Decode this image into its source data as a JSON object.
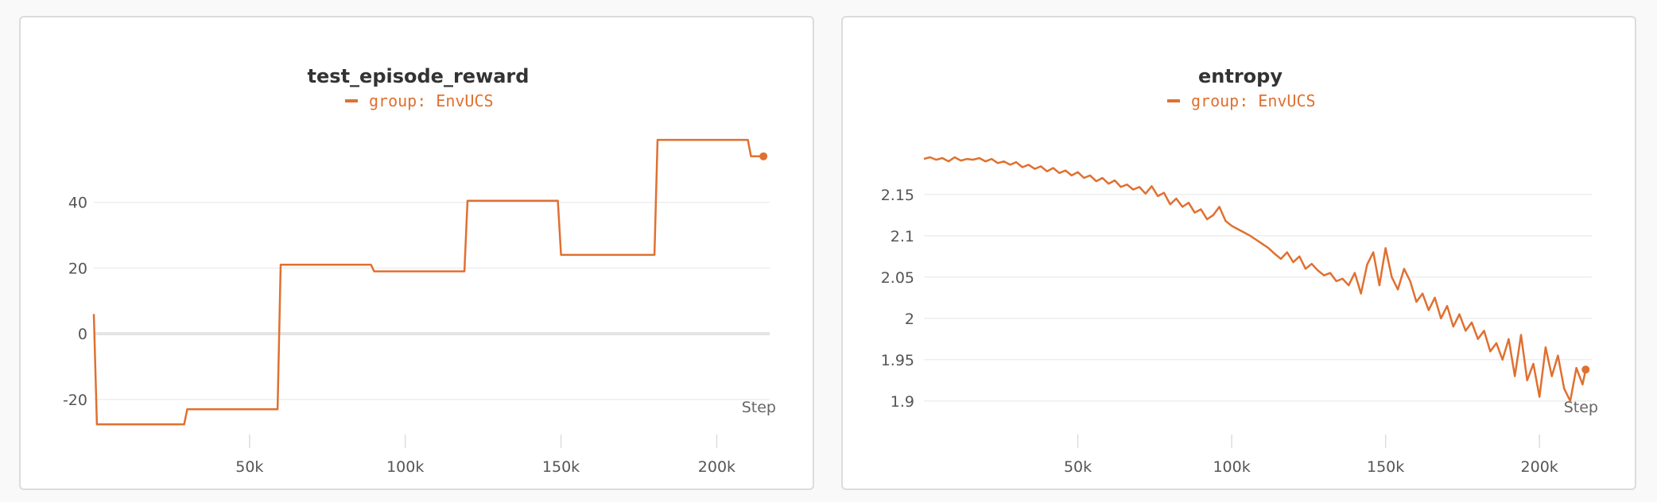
{
  "accent_color": "#e07030",
  "chart_data": [
    {
      "type": "line",
      "title": "test_episode_reward",
      "xlabel": "Step",
      "ylabel": "",
      "legend": "group: EnvUCS",
      "legend_position": "top-center",
      "grid": true,
      "xlim": [
        0,
        217000
      ],
      "ylim": [
        -28,
        60
      ],
      "x_ticks": [
        50000,
        100000,
        150000,
        200000
      ],
      "x_tick_labels": [
        "50k",
        "100k",
        "150k",
        "200k"
      ],
      "y_ticks": [
        -20,
        0,
        20,
        40
      ],
      "y_tick_labels": [
        "-20",
        "0",
        "20",
        "40"
      ],
      "series": [
        {
          "name": "group: EnvUCS",
          "color": "#e07030",
          "x": [
            0,
            1000,
            29000,
            30000,
            59000,
            60000,
            89000,
            90000,
            119000,
            120000,
            149000,
            150000,
            180000,
            181000,
            210000,
            211000,
            215000
          ],
          "y": [
            6,
            -27.6,
            -27.6,
            -23,
            -23,
            21,
            21,
            19,
            19,
            40.5,
            40.5,
            24,
            24,
            59,
            59,
            54,
            54
          ]
        }
      ]
    },
    {
      "type": "line",
      "title": "entropy",
      "xlabel": "Step",
      "ylabel": "",
      "legend": "group: EnvUCS",
      "legend_position": "top-center",
      "grid": true,
      "xlim": [
        0,
        217000
      ],
      "ylim": [
        1.87,
        2.22
      ],
      "x_ticks": [
        50000,
        100000,
        150000,
        200000
      ],
      "x_tick_labels": [
        "50k",
        "100k",
        "150k",
        "200k"
      ],
      "y_ticks": [
        1.9,
        1.95,
        2.0,
        2.05,
        2.1,
        2.15
      ],
      "y_tick_labels": [
        "1.9",
        "1.95",
        "2",
        "2.05",
        "2.1",
        "2.15"
      ],
      "series": [
        {
          "name": "group: EnvUCS",
          "color": "#e07030",
          "x": [
            0,
            2000,
            4000,
            6000,
            8000,
            10000,
            12000,
            14000,
            16000,
            18000,
            20000,
            22000,
            24000,
            26000,
            28000,
            30000,
            32000,
            34000,
            36000,
            38000,
            40000,
            42000,
            44000,
            46000,
            48000,
            50000,
            52000,
            54000,
            56000,
            58000,
            60000,
            62000,
            64000,
            66000,
            68000,
            70000,
            72000,
            74000,
            76000,
            78000,
            80000,
            82000,
            84000,
            86000,
            88000,
            90000,
            92000,
            94000,
            96000,
            98000,
            100000,
            102000,
            104000,
            106000,
            108000,
            110000,
            112000,
            114000,
            116000,
            118000,
            120000,
            122000,
            124000,
            126000,
            128000,
            130000,
            132000,
            134000,
            136000,
            138000,
            140000,
            142000,
            144000,
            146000,
            148000,
            150000,
            152000,
            154000,
            156000,
            158000,
            160000,
            162000,
            164000,
            166000,
            168000,
            170000,
            172000,
            174000,
            176000,
            178000,
            180000,
            182000,
            184000,
            186000,
            188000,
            190000,
            192000,
            194000,
            196000,
            198000,
            200000,
            202000,
            204000,
            206000,
            208000,
            210000,
            212000,
            214000,
            215000
          ],
          "y": [
            2.193,
            2.195,
            2.192,
            2.194,
            2.19,
            2.195,
            2.191,
            2.193,
            2.192,
            2.194,
            2.19,
            2.193,
            2.188,
            2.19,
            2.186,
            2.189,
            2.183,
            2.186,
            2.181,
            2.184,
            2.178,
            2.182,
            2.176,
            2.179,
            2.173,
            2.177,
            2.17,
            2.173,
            2.166,
            2.17,
            2.163,
            2.167,
            2.159,
            2.162,
            2.156,
            2.159,
            2.151,
            2.16,
            2.148,
            2.152,
            2.138,
            2.145,
            2.135,
            2.14,
            2.128,
            2.132,
            2.12,
            2.125,
            2.135,
            2.118,
            2.112,
            2.108,
            2.104,
            2.1,
            2.095,
            2.09,
            2.085,
            2.078,
            2.072,
            2.08,
            2.068,
            2.075,
            2.06,
            2.066,
            2.058,
            2.052,
            2.055,
            2.045,
            2.048,
            2.04,
            2.055,
            2.03,
            2.065,
            2.08,
            2.04,
            2.085,
            2.05,
            2.035,
            2.06,
            2.045,
            2.02,
            2.03,
            2.01,
            2.025,
            2.0,
            2.015,
            1.99,
            2.005,
            1.985,
            1.995,
            1.975,
            1.985,
            1.96,
            1.97,
            1.95,
            1.975,
            1.93,
            1.98,
            1.925,
            1.945,
            1.905,
            1.965,
            1.93,
            1.955,
            1.915,
            1.9,
            1.94,
            1.92,
            1.938
          ]
        }
      ]
    }
  ]
}
